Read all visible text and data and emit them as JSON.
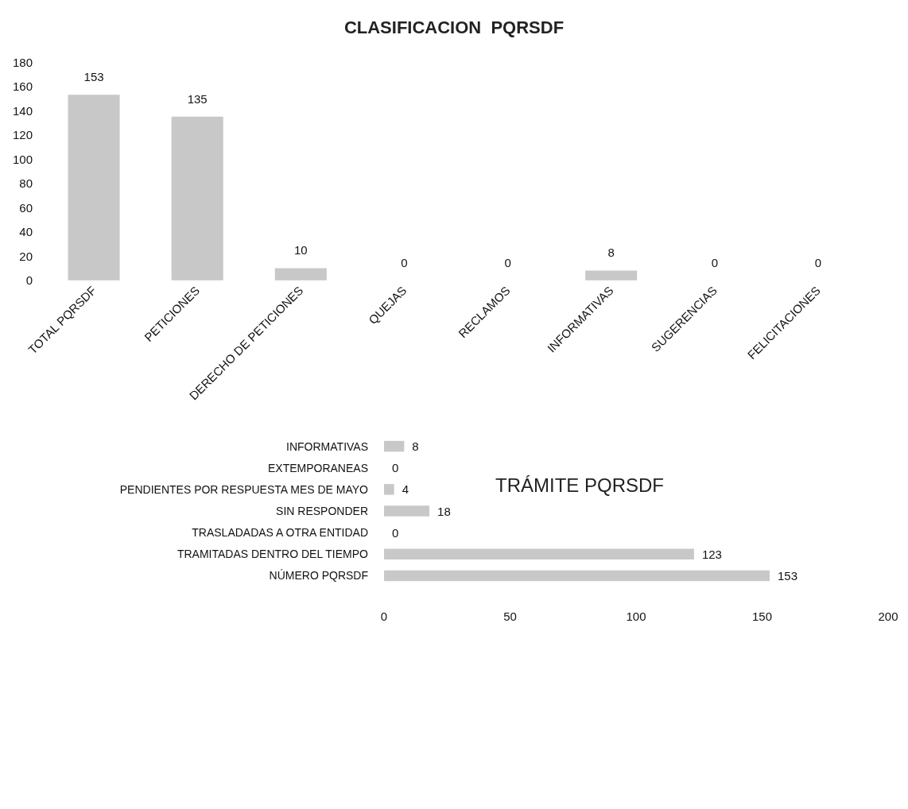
{
  "chart_data": [
    {
      "type": "bar",
      "title": "CLASIFICACION  PQRSDF",
      "categories": [
        "TOTAL PQRSDF",
        "PETICIONES",
        "DERECHO DE PETICIONES",
        "QUEJAS",
        "RECLAMOS",
        "INFORMATIVAS",
        "SUGERENCIAS",
        "FELICITACIONES"
      ],
      "values": [
        153,
        135,
        10,
        0,
        0,
        8,
        0,
        0
      ],
      "color": "#c8c8c8",
      "ylim": [
        0,
        180
      ],
      "yticks": [
        0,
        20,
        40,
        60,
        80,
        100,
        120,
        140,
        160,
        180
      ],
      "grid": false,
      "data_labels": true
    },
    {
      "type": "bar",
      "orientation": "horizontal",
      "title": "TRÁMITE PQRSDF",
      "categories": [
        "INFORMATIVAS",
        "EXTEMPORANEAS",
        "PENDIENTES POR RESPUESTA MES DE MAYO",
        "SIN RESPONDER",
        "TRASLADADAS A OTRA ENTIDAD",
        "TRAMITADAS DENTRO DEL TIEMPO",
        "NÚMERO PQRSDF"
      ],
      "values": [
        8,
        0,
        4,
        18,
        0,
        123,
        153
      ],
      "color": "#c8c8c8",
      "xlim": [
        0,
        200
      ],
      "xticks": [
        0,
        50,
        100,
        150,
        200
      ],
      "grid": false,
      "data_labels": true
    }
  ]
}
